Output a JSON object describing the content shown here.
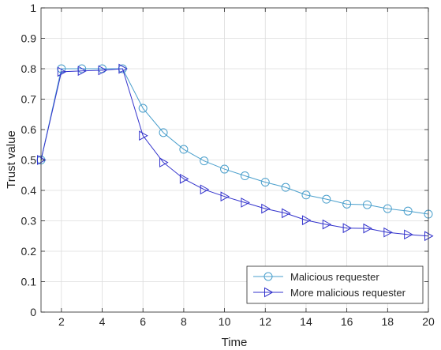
{
  "chart_data": {
    "type": "line",
    "title": "",
    "xlabel": "Time",
    "ylabel": "Trust value",
    "xlim": [
      1,
      20
    ],
    "ylim": [
      0,
      1
    ],
    "xticks": [
      2,
      4,
      6,
      8,
      10,
      12,
      14,
      16,
      18,
      20
    ],
    "yticks": [
      0,
      0.1,
      0.2,
      0.3,
      0.4,
      0.5,
      0.6,
      0.7,
      0.8,
      0.9,
      1
    ],
    "grid": true,
    "legend_position": "bottom-right",
    "x": [
      1,
      2,
      3,
      4,
      5,
      6,
      7,
      8,
      9,
      10,
      11,
      12,
      13,
      14,
      15,
      16,
      17,
      18,
      19,
      20
    ],
    "series": [
      {
        "name": "Malicious requester",
        "marker": "circle",
        "color": "#4a9fcc",
        "values": [
          0.5,
          0.8,
          0.8,
          0.8,
          0.8,
          0.67,
          0.59,
          0.535,
          0.497,
          0.47,
          0.448,
          0.427,
          0.41,
          0.385,
          0.371,
          0.355,
          0.353,
          0.34,
          0.332,
          0.322
        ]
      },
      {
        "name": "More malicious requester",
        "marker": "triangle-right",
        "color": "#3333cc",
        "values": [
          0.5,
          0.79,
          0.793,
          0.795,
          0.8,
          0.58,
          0.492,
          0.438,
          0.403,
          0.38,
          0.36,
          0.34,
          0.325,
          0.302,
          0.288,
          0.276,
          0.275,
          0.262,
          0.255,
          0.25
        ]
      }
    ]
  }
}
